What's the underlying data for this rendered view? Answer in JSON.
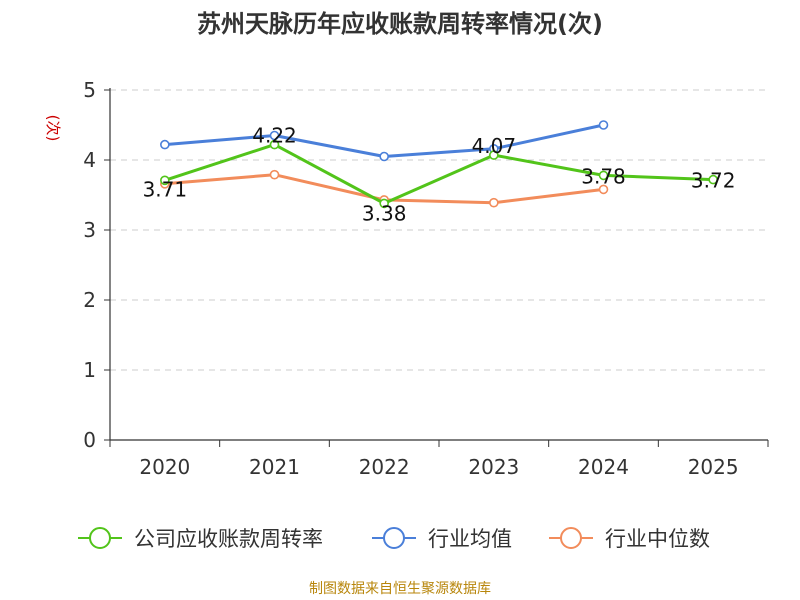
{
  "chart_data": {
    "type": "line",
    "title": "苏州天脉历年应收账款周转率情况(次)",
    "ylabel": "(次)",
    "xlabel": "",
    "ylim": [
      0,
      5
    ],
    "yticks": [
      0,
      1,
      2,
      3,
      4,
      5
    ],
    "categories": [
      "2020",
      "2021",
      "2022",
      "2023",
      "2024",
      "2025"
    ],
    "grid": true,
    "legend_position": "bottom",
    "series": [
      {
        "name": "公司应收账款周转率",
        "color": "#52c41a",
        "values": [
          3.71,
          4.22,
          3.38,
          4.07,
          3.78,
          3.72
        ],
        "labels": [
          "3.71",
          "4.22",
          "3.38",
          "4.07",
          "3.78",
          "3.72"
        ]
      },
      {
        "name": "行业均值",
        "color": "#4a7fd9",
        "values": [
          4.22,
          4.35,
          4.05,
          4.16,
          4.5,
          null
        ]
      },
      {
        "name": "行业中位数",
        "color": "#f28c5b",
        "values": [
          3.66,
          3.79,
          3.43,
          3.39,
          3.58,
          null
        ]
      }
    ]
  },
  "source": "制图数据来自恒生聚源数据库"
}
